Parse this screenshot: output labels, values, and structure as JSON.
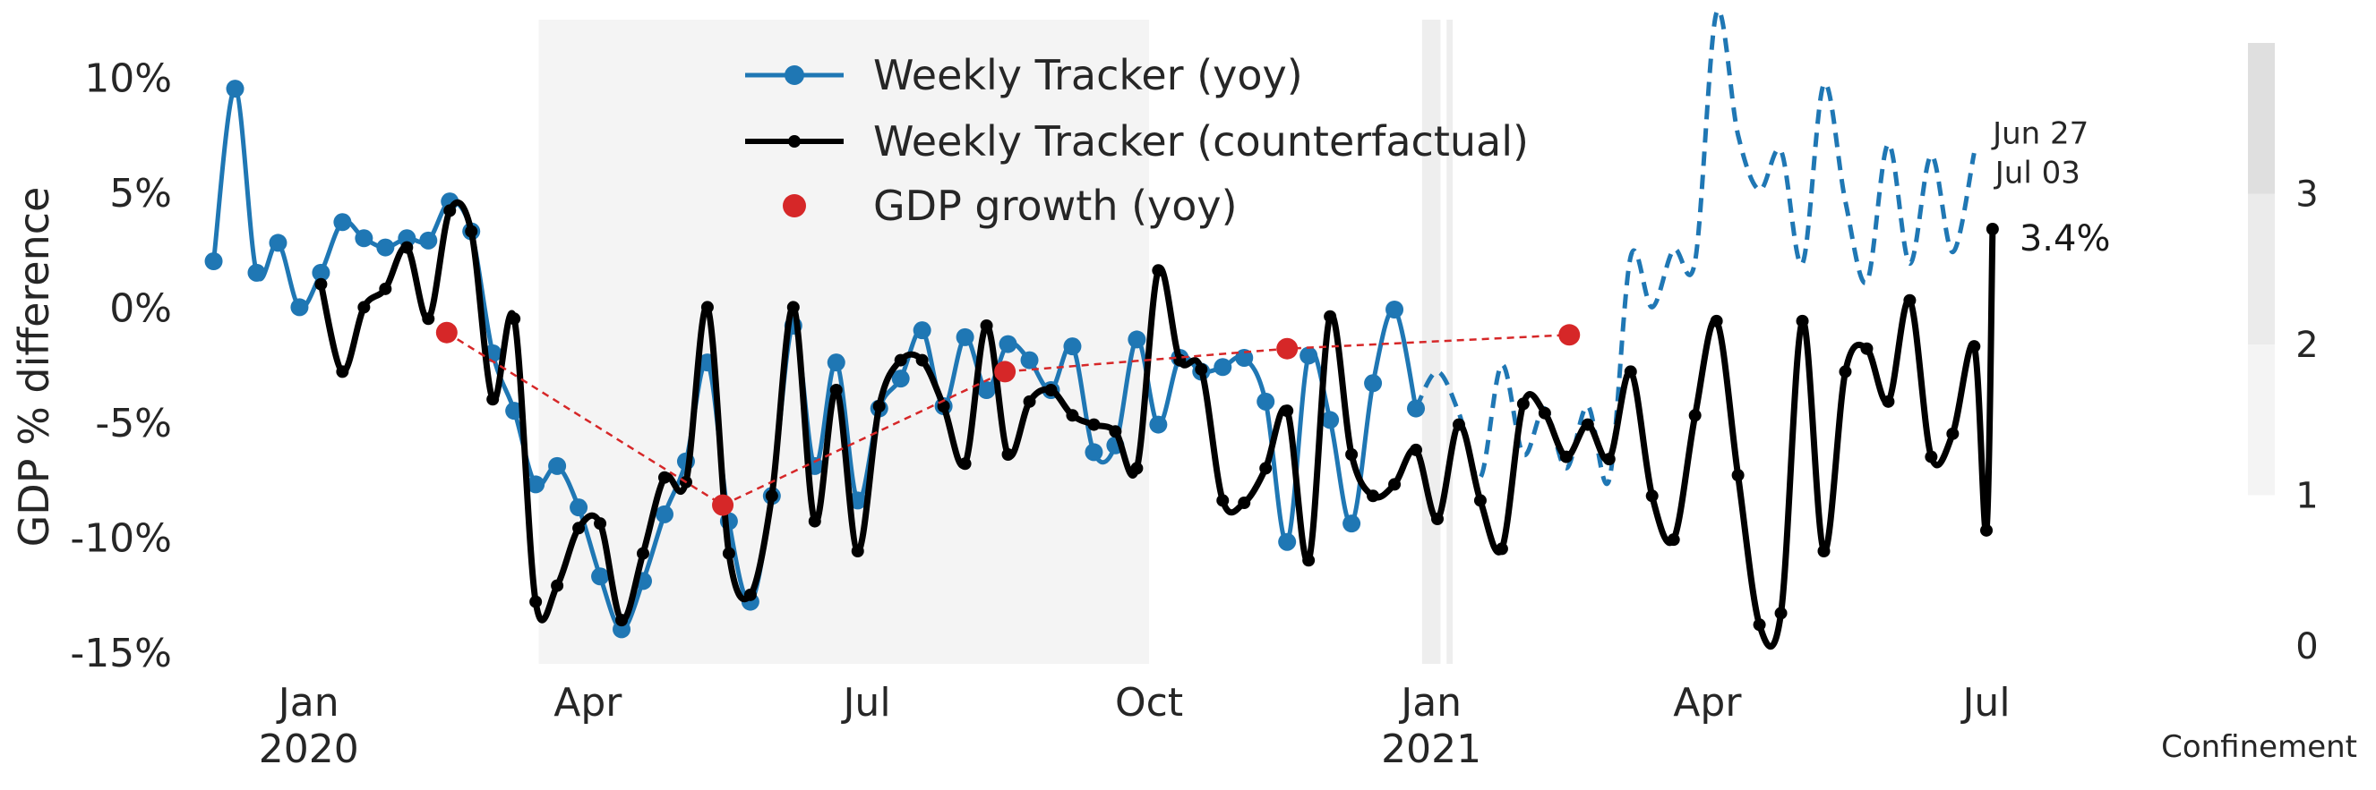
{
  "chart_data": {
    "type": "line",
    "title": "",
    "ylabel": "GDP % difference",
    "y_unit": "%",
    "ylim": [
      -15.5,
      12.5
    ],
    "y_ticks": [
      {
        "value": 10,
        "label": "10%"
      },
      {
        "value": 5,
        "label": "5%"
      },
      {
        "value": 0,
        "label": "0%"
      },
      {
        "value": -5,
        "label": "-5%"
      },
      {
        "value": -10,
        "label": "-10%"
      },
      {
        "value": -15,
        "label": "-15%"
      }
    ],
    "x_ticks": [
      {
        "date": "2020-01-01",
        "label": "Jan",
        "year": "2020"
      },
      {
        "date": "2020-04-01",
        "label": "Apr",
        "year": ""
      },
      {
        "date": "2020-07-01",
        "label": "Jul",
        "year": ""
      },
      {
        "date": "2020-10-01",
        "label": "Oct",
        "year": ""
      },
      {
        "date": "2021-01-01",
        "label": "Jan",
        "year": "2021"
      },
      {
        "date": "2021-04-01",
        "label": "Apr",
        "year": ""
      },
      {
        "date": "2021-07-01",
        "label": "Jul",
        "year": ""
      }
    ],
    "xlim": [
      "2019-11-25",
      "2021-08-10"
    ],
    "grid": false,
    "legend_position": "top-center",
    "legend": [
      {
        "label": "Weekly Tracker (yoy)",
        "color": "#1f77b4",
        "marker": "line-dot"
      },
      {
        "label": "Weekly Tracker (counterfactual)",
        "color": "#000000",
        "marker": "line-dot"
      },
      {
        "label": "GDP growth (yoy)",
        "color": "#d62728",
        "marker": "dot"
      }
    ],
    "confinement_shading": [
      {
        "start": "2020-03-16",
        "end": "2020-10-01",
        "level": 1
      },
      {
        "start": "2020-12-29",
        "end": "2021-01-04",
        "level": 2
      },
      {
        "start": "2021-01-06",
        "end": "2021-01-08",
        "level": 2
      }
    ],
    "series": [
      {
        "name": "Weekly Tracker (yoy)",
        "color": "#1f77b4",
        "points": [
          [
            "2019-12-01",
            2.0
          ],
          [
            "2019-12-08",
            9.5
          ],
          [
            "2019-12-15",
            1.5
          ],
          [
            "2019-12-22",
            2.8
          ],
          [
            "2019-12-29",
            0.0
          ],
          [
            "2020-01-05",
            1.5
          ],
          [
            "2020-01-12",
            3.7
          ],
          [
            "2020-01-19",
            3.0
          ],
          [
            "2020-01-26",
            2.6
          ],
          [
            "2020-02-02",
            3.0
          ],
          [
            "2020-02-09",
            2.9
          ],
          [
            "2020-02-16",
            4.6
          ],
          [
            "2020-02-23",
            3.3
          ],
          [
            "2020-03-01",
            -2.0
          ],
          [
            "2020-03-08",
            -4.5
          ],
          [
            "2020-03-15",
            -7.7
          ],
          [
            "2020-03-22",
            -6.9
          ],
          [
            "2020-03-29",
            -8.7
          ],
          [
            "2020-04-05",
            -11.7
          ],
          [
            "2020-04-12",
            -14.0
          ],
          [
            "2020-04-19",
            -11.9
          ],
          [
            "2020-04-26",
            -9.0
          ],
          [
            "2020-05-03",
            -6.7
          ],
          [
            "2020-05-10",
            -2.4
          ],
          [
            "2020-05-17",
            -9.3
          ],
          [
            "2020-05-24",
            -12.8
          ],
          [
            "2020-05-31",
            -8.2
          ],
          [
            "2020-06-07",
            -0.8
          ],
          [
            "2020-06-14",
            -6.9
          ],
          [
            "2020-06-21",
            -2.4
          ],
          [
            "2020-06-28",
            -8.4
          ],
          [
            "2020-07-05",
            -4.4
          ],
          [
            "2020-07-12",
            -3.1
          ],
          [
            "2020-07-19",
            -1.0
          ],
          [
            "2020-07-26",
            -4.3
          ],
          [
            "2020-08-02",
            -1.3
          ],
          [
            "2020-08-09",
            -3.6
          ],
          [
            "2020-08-16",
            -1.6
          ],
          [
            "2020-08-23",
            -2.3
          ],
          [
            "2020-08-30",
            -3.6
          ],
          [
            "2020-09-06",
            -1.7
          ],
          [
            "2020-09-13",
            -6.3
          ],
          [
            "2020-09-20",
            -6.0
          ],
          [
            "2020-09-27",
            -1.4
          ],
          [
            "2020-10-04",
            -5.1
          ],
          [
            "2020-10-11",
            -2.2
          ],
          [
            "2020-10-18",
            -2.8
          ],
          [
            "2020-10-25",
            -2.6
          ],
          [
            "2020-11-01",
            -2.2
          ],
          [
            "2020-11-08",
            -4.1
          ],
          [
            "2020-11-15",
            -10.2
          ],
          [
            "2020-11-22",
            -2.1
          ],
          [
            "2020-11-29",
            -4.9
          ],
          [
            "2020-12-06",
            -9.4
          ],
          [
            "2020-12-13",
            -3.3
          ],
          [
            "2020-12-20",
            -0.1
          ],
          [
            "2020-12-27",
            -4.4
          ]
        ]
      },
      {
        "name": "Weekly Tracker (yoy) forecast",
        "color": "#1f77b4",
        "dashed": true,
        "points": [
          [
            "2020-12-27",
            -4.4
          ],
          [
            "2021-01-03",
            -2.8
          ],
          [
            "2021-01-10",
            -4.6
          ],
          [
            "2021-01-17",
            -7.4
          ],
          [
            "2021-01-24",
            -2.5
          ],
          [
            "2021-01-31",
            -6.4
          ],
          [
            "2021-02-07",
            -4.4
          ],
          [
            "2021-02-14",
            -7.0
          ],
          [
            "2021-02-21",
            -4.3
          ],
          [
            "2021-02-28",
            -7.5
          ],
          [
            "2021-03-07",
            2.2
          ],
          [
            "2021-03-14",
            0.0
          ],
          [
            "2021-03-21",
            2.5
          ],
          [
            "2021-03-28",
            2.0
          ],
          [
            "2021-04-04",
            12.8
          ],
          [
            "2021-04-11",
            7.5
          ],
          [
            "2021-04-18",
            5.1
          ],
          [
            "2021-04-25",
            6.8
          ],
          [
            "2021-05-02",
            1.9
          ],
          [
            "2021-05-09",
            9.7
          ],
          [
            "2021-05-16",
            4.6
          ],
          [
            "2021-05-23",
            1.1
          ],
          [
            "2021-05-30",
            7.1
          ],
          [
            "2021-06-06",
            1.9
          ],
          [
            "2021-06-13",
            6.6
          ],
          [
            "2021-06-20",
            2.4
          ],
          [
            "2021-06-27",
            6.7
          ]
        ]
      },
      {
        "name": "Weekly Tracker (counterfactual)",
        "color": "#000000",
        "points": [
          [
            "2020-01-05",
            1.0
          ],
          [
            "2020-01-12",
            -2.8
          ],
          [
            "2020-01-19",
            0.0
          ],
          [
            "2020-01-26",
            0.8
          ],
          [
            "2020-02-02",
            2.6
          ],
          [
            "2020-02-09",
            -0.5
          ],
          [
            "2020-02-16",
            4.2
          ],
          [
            "2020-02-23",
            3.3
          ],
          [
            "2020-03-01",
            -4.0
          ],
          [
            "2020-03-08",
            -0.5
          ],
          [
            "2020-03-15",
            -12.8
          ],
          [
            "2020-03-22",
            -12.1
          ],
          [
            "2020-03-29",
            -9.6
          ],
          [
            "2020-04-05",
            -9.4
          ],
          [
            "2020-04-12",
            -13.6
          ],
          [
            "2020-04-19",
            -10.7
          ],
          [
            "2020-04-26",
            -7.4
          ],
          [
            "2020-05-03",
            -7.6
          ],
          [
            "2020-05-10",
            0.0
          ],
          [
            "2020-05-17",
            -10.7
          ],
          [
            "2020-05-24",
            -12.5
          ],
          [
            "2020-05-31",
            -8.2
          ],
          [
            "2020-06-07",
            0.0
          ],
          [
            "2020-06-14",
            -9.3
          ],
          [
            "2020-06-21",
            -3.6
          ],
          [
            "2020-06-28",
            -10.6
          ],
          [
            "2020-07-05",
            -4.3
          ],
          [
            "2020-07-12",
            -2.3
          ],
          [
            "2020-07-19",
            -2.3
          ],
          [
            "2020-07-26",
            -4.3
          ],
          [
            "2020-08-02",
            -6.8
          ],
          [
            "2020-08-09",
            -0.8
          ],
          [
            "2020-08-16",
            -6.4
          ],
          [
            "2020-08-23",
            -4.1
          ],
          [
            "2020-08-30",
            -3.6
          ],
          [
            "2020-09-06",
            -4.7
          ],
          [
            "2020-09-13",
            -5.1
          ],
          [
            "2020-09-20",
            -5.4
          ],
          [
            "2020-09-27",
            -7.0
          ],
          [
            "2020-10-04",
            1.6
          ],
          [
            "2020-10-11",
            -2.3
          ],
          [
            "2020-10-18",
            -2.7
          ],
          [
            "2020-10-25",
            -8.4
          ],
          [
            "2020-11-01",
            -8.5
          ],
          [
            "2020-11-08",
            -7.0
          ],
          [
            "2020-11-15",
            -4.5
          ],
          [
            "2020-11-22",
            -11.0
          ],
          [
            "2020-11-29",
            -0.4
          ],
          [
            "2020-12-06",
            -6.4
          ],
          [
            "2020-12-13",
            -8.2
          ],
          [
            "2020-12-20",
            -7.7
          ],
          [
            "2020-12-27",
            -6.2
          ],
          [
            "2021-01-03",
            -9.2
          ],
          [
            "2021-01-10",
            -5.1
          ],
          [
            "2021-01-17",
            -8.4
          ],
          [
            "2021-01-24",
            -10.5
          ],
          [
            "2021-01-31",
            -4.2
          ],
          [
            "2021-02-07",
            -4.6
          ],
          [
            "2021-02-14",
            -6.5
          ],
          [
            "2021-02-21",
            -5.1
          ],
          [
            "2021-02-28",
            -6.6
          ],
          [
            "2021-03-07",
            -2.8
          ],
          [
            "2021-03-14",
            -8.2
          ],
          [
            "2021-03-21",
            -10.1
          ],
          [
            "2021-03-28",
            -4.7
          ],
          [
            "2021-04-04",
            -0.6
          ],
          [
            "2021-04-11",
            -7.3
          ],
          [
            "2021-04-18",
            -13.8
          ],
          [
            "2021-04-25",
            -13.3
          ],
          [
            "2021-05-02",
            -0.6
          ],
          [
            "2021-05-09",
            -10.6
          ],
          [
            "2021-05-16",
            -2.8
          ],
          [
            "2021-05-23",
            -1.8
          ],
          [
            "2021-05-30",
            -4.1
          ],
          [
            "2021-06-06",
            0.3
          ],
          [
            "2021-06-13",
            -6.5
          ],
          [
            "2021-06-20",
            -5.5
          ],
          [
            "2021-06-27",
            -1.7
          ],
          [
            "2021-07-01",
            -9.7
          ],
          [
            "2021-07-03",
            3.4
          ]
        ]
      },
      {
        "name": "GDP growth (yoy)",
        "color": "#d62728",
        "points": [
          [
            "2020-02-15",
            -1.1
          ],
          [
            "2020-05-15",
            -8.6
          ],
          [
            "2020-08-15",
            -2.8
          ],
          [
            "2020-11-15",
            -1.8
          ],
          [
            "2021-02-15",
            -1.2
          ]
        ]
      }
    ],
    "annotations": [
      {
        "text": "Jun 27",
        "date": "2021-06-27",
        "value": 7.5
      },
      {
        "text": "Jul 03",
        "date": "2021-07-03",
        "value": 5.8
      },
      {
        "text": "3.4%",
        "date": "2021-07-03",
        "value": 3.4
      }
    ],
    "confinement_axis": {
      "label": "Confinement",
      "ticks": [
        "0",
        "1",
        "2",
        "3"
      ],
      "bands": [
        {
          "from": 1,
          "to": 2,
          "color": "#f4f4f4"
        },
        {
          "from": 2,
          "to": 3,
          "color": "#ebebeb"
        },
        {
          "from": 3,
          "to": 4,
          "color": "#dfdfdf"
        }
      ]
    }
  }
}
